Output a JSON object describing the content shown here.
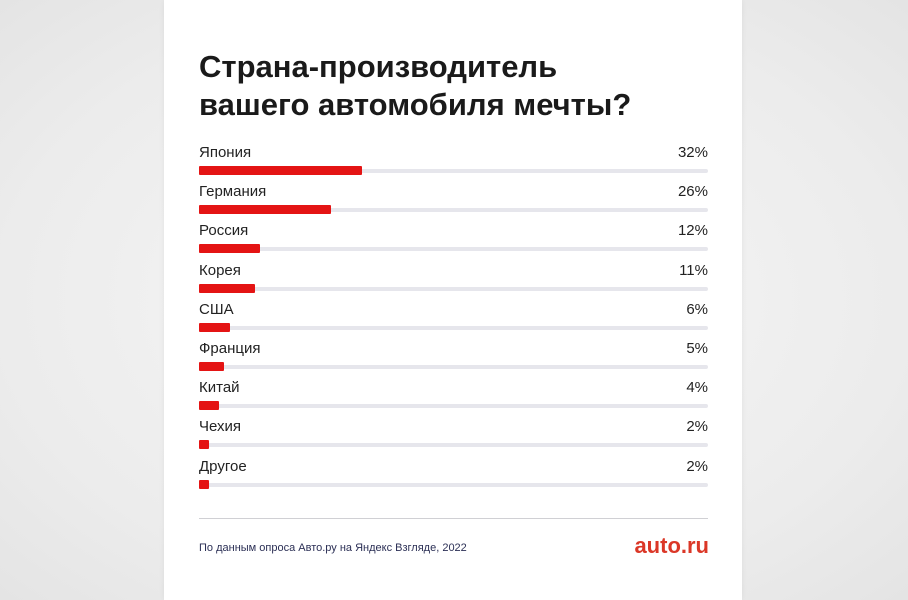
{
  "chart_data": {
    "type": "bar",
    "orientation": "horizontal",
    "title": "Страна-производитель вашего автомобиля мечты?",
    "title_lines": [
      "Страна-производитель",
      "вашего автомобиля мечты?"
    ],
    "categories": [
      "Япония",
      "Германия",
      "Россия",
      "Корея",
      "США",
      "Франция",
      "Китай",
      "Чехия",
      "Другое"
    ],
    "values": [
      32,
      26,
      12,
      11,
      6,
      5,
      4,
      2,
      2
    ],
    "value_labels": [
      "32%",
      "26%",
      "12%",
      "11%",
      "6%",
      "5%",
      "4%",
      "2%",
      "2%"
    ],
    "xlim": [
      0,
      100
    ],
    "unit": "%",
    "bar_color": "#e41414",
    "track_color": "#e6e6ec",
    "grid": false,
    "legend": false
  },
  "footer": {
    "source": "По данным опроса Авто.ру на Яндекс Взгляде, 2022",
    "brand": "auto.ru",
    "brand_color": "#db3727"
  }
}
